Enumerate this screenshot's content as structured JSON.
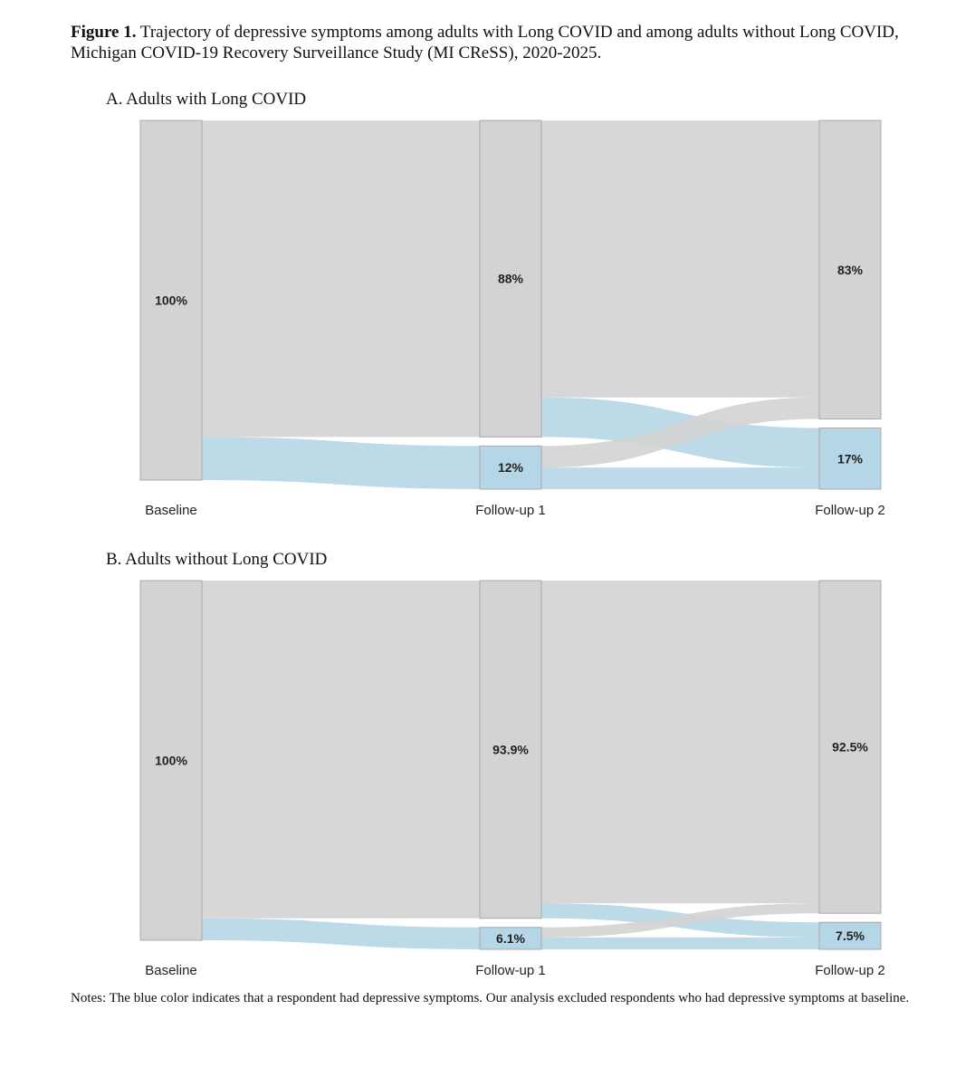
{
  "caption": {
    "label": "Figure 1.",
    "text": "Trajectory of depressive symptoms among adults with Long COVID and among adults without Long COVID, Michigan COVID-19 Recovery Surveillance Study (MI CReSS), 2020-2025."
  },
  "notes": "Notes: The blue color indicates that a respondent had depressive symptoms. Our analysis excluded respondents who had depressive symptoms at baseline.",
  "chart_data": [
    {
      "type": "sankey",
      "title": "A. Adults with Long COVID",
      "colors": [
        "#d3d3d3",
        "#b5d6e6"
      ],
      "columns": [
        {
          "label": "Baseline",
          "values": [
            100
          ],
          "value_labels": [
            "100%"
          ]
        },
        {
          "label": "Follow-up 1",
          "values": [
            88,
            12
          ],
          "value_labels": [
            "88%",
            "12%"
          ]
        },
        {
          "label": "Follow-up 2",
          "values": [
            83,
            17
          ],
          "value_labels": [
            "83%",
            "17%"
          ]
        }
      ],
      "flows": [
        [
          [
            88,
            12
          ]
        ],
        [
          [
            77,
            11
          ],
          [
            6,
            6
          ]
        ]
      ]
    },
    {
      "type": "sankey",
      "title": "B. Adults without Long COVID",
      "colors": [
        "#d3d3d3",
        "#b5d6e6"
      ],
      "columns": [
        {
          "label": "Baseline",
          "values": [
            100
          ],
          "value_labels": [
            "100%"
          ]
        },
        {
          "label": "Follow-up 1",
          "values": [
            93.9,
            6.1
          ],
          "value_labels": [
            "93.9%",
            "6.1%"
          ]
        },
        {
          "label": "Follow-up 2",
          "values": [
            92.5,
            7.5
          ],
          "value_labels": [
            "92.5%",
            "7.5%"
          ]
        }
      ],
      "flows": [
        [
          [
            93.9,
            6.1
          ]
        ],
        [
          [
            89.7,
            4.2
          ],
          [
            2.8,
            3.3
          ]
        ]
      ]
    }
  ]
}
